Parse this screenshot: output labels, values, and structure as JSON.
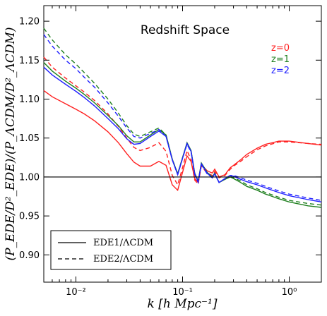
{
  "chart_data": {
    "type": "line",
    "title": "Redshift Space",
    "xlabel": "k [h Mpc⁻¹]",
    "ylabel": "(P_EDE/D²_EDE)/(P_ΛCDM/D²_ΛCDM)",
    "xscale": "log",
    "xlim": [
      0.005,
      2.0
    ],
    "ylim": [
      0.865,
      1.22
    ],
    "x_ticks": [
      {
        "value": 0.01,
        "label": "10⁻²"
      },
      {
        "value": 0.1,
        "label": "10⁻¹"
      },
      {
        "value": 1,
        "label": "10⁰"
      }
    ],
    "y_ticks": [
      {
        "value": 0.9,
        "label": "0.90"
      },
      {
        "value": 0.95,
        "label": "0.95"
      },
      {
        "value": 1.0,
        "label": "1.00"
      },
      {
        "value": 1.05,
        "label": "1.05"
      },
      {
        "value": 1.1,
        "label": "1.10"
      },
      {
        "value": 1.15,
        "label": "1.15"
      },
      {
        "value": 1.2,
        "label": "1.20"
      }
    ],
    "reference_line": 1.0,
    "redshift_labels": [
      {
        "text": "z=0",
        "color": "#ff2020"
      },
      {
        "text": "z=1",
        "color": "#208020"
      },
      {
        "text": "z=2",
        "color": "#2020ff"
      }
    ],
    "legend": [
      {
        "label": "EDE1/ΛCDM",
        "style": "solid"
      },
      {
        "label": "EDE2/ΛCDM",
        "style": "dashed"
      }
    ],
    "series": [
      {
        "color": "#ff2020",
        "style": "solid",
        "x": [
          0.005,
          0.006,
          0.008,
          0.01,
          0.012,
          0.015,
          0.02,
          0.025,
          0.03,
          0.035,
          0.04,
          0.05,
          0.06,
          0.07,
          0.08,
          0.09,
          0.1,
          0.11,
          0.12,
          0.13,
          0.14,
          0.15,
          0.17,
          0.19,
          0.2,
          0.22,
          0.25,
          0.28,
          0.3,
          0.35,
          0.4,
          0.5,
          0.6,
          0.8,
          1.0,
          1.5,
          2.0
        ],
        "y": [
          1.111,
          1.103,
          1.094,
          1.087,
          1.081,
          1.072,
          1.058,
          1.044,
          1.03,
          1.019,
          1.014,
          1.014,
          1.02,
          1.015,
          0.99,
          0.983,
          1.006,
          1.027,
          1.02,
          0.998,
          0.993,
          1.016,
          1.008,
          1.005,
          1.01,
          1.0,
          1.003,
          1.012,
          1.015,
          1.022,
          1.029,
          1.037,
          1.042,
          1.046,
          1.046,
          1.043,
          1.041
        ]
      },
      {
        "color": "#ff2020",
        "style": "dashed",
        "x": [
          0.005,
          0.006,
          0.008,
          0.01,
          0.012,
          0.015,
          0.02,
          0.025,
          0.03,
          0.035,
          0.04,
          0.05,
          0.06,
          0.07,
          0.08,
          0.09,
          0.1,
          0.11,
          0.12,
          0.13,
          0.14,
          0.15,
          0.17,
          0.19,
          0.2,
          0.22,
          0.25,
          0.28,
          0.3,
          0.35,
          0.4,
          0.5,
          0.6,
          0.8,
          1.0,
          1.5,
          2.0
        ],
        "y": [
          1.154,
          1.141,
          1.127,
          1.117,
          1.109,
          1.098,
          1.081,
          1.065,
          1.05,
          1.038,
          1.034,
          1.038,
          1.044,
          1.033,
          1.002,
          0.99,
          1.012,
          1.034,
          1.022,
          0.996,
          0.991,
          1.014,
          1.005,
          1.002,
          1.007,
          0.999,
          1.002,
          1.01,
          1.014,
          1.02,
          1.026,
          1.035,
          1.04,
          1.045,
          1.045,
          1.043,
          1.042
        ]
      },
      {
        "color": "#208020",
        "style": "solid",
        "x": [
          0.005,
          0.006,
          0.008,
          0.01,
          0.012,
          0.015,
          0.02,
          0.025,
          0.03,
          0.035,
          0.04,
          0.05,
          0.06,
          0.07,
          0.08,
          0.09,
          0.1,
          0.11,
          0.12,
          0.13,
          0.14,
          0.15,
          0.17,
          0.19,
          0.2,
          0.22,
          0.25,
          0.28,
          0.3,
          0.35,
          0.4,
          0.5,
          0.6,
          0.8,
          1.0,
          1.5,
          2.0
        ],
        "y": [
          1.147,
          1.136,
          1.123,
          1.114,
          1.106,
          1.095,
          1.079,
          1.066,
          1.053,
          1.045,
          1.045,
          1.054,
          1.061,
          1.054,
          1.023,
          1.004,
          1.025,
          1.044,
          1.034,
          1.005,
          0.995,
          1.018,
          1.006,
          1.0,
          1.005,
          0.993,
          0.997,
          1.0,
          0.998,
          0.993,
          0.988,
          0.983,
          0.978,
          0.972,
          0.968,
          0.963,
          0.961
        ]
      },
      {
        "color": "#208020",
        "style": "dashed",
        "x": [
          0.005,
          0.006,
          0.008,
          0.01,
          0.012,
          0.015,
          0.02,
          0.025,
          0.03,
          0.035,
          0.04,
          0.05,
          0.06,
          0.07,
          0.08,
          0.09,
          0.1,
          0.11,
          0.12,
          0.13,
          0.14,
          0.15,
          0.17,
          0.19,
          0.2,
          0.22,
          0.25,
          0.28,
          0.3,
          0.35,
          0.4,
          0.5,
          0.6,
          0.8,
          1.0,
          1.5,
          2.0
        ],
        "y": [
          1.191,
          1.176,
          1.157,
          1.145,
          1.134,
          1.12,
          1.1,
          1.082,
          1.066,
          1.055,
          1.052,
          1.058,
          1.063,
          1.054,
          1.023,
          1.004,
          1.025,
          1.043,
          1.033,
          1.004,
          0.994,
          1.017,
          1.005,
          0.999,
          1.004,
          0.993,
          0.997,
          1.001,
          0.999,
          0.995,
          0.99,
          0.985,
          0.98,
          0.974,
          0.97,
          0.966,
          0.964
        ]
      },
      {
        "color": "#2020ff",
        "style": "solid",
        "x": [
          0.005,
          0.006,
          0.008,
          0.01,
          0.012,
          0.015,
          0.02,
          0.025,
          0.03,
          0.035,
          0.04,
          0.05,
          0.06,
          0.07,
          0.08,
          0.09,
          0.1,
          0.11,
          0.12,
          0.13,
          0.14,
          0.15,
          0.17,
          0.19,
          0.2,
          0.22,
          0.25,
          0.28,
          0.3,
          0.35,
          0.4,
          0.5,
          0.6,
          0.8,
          1.0,
          1.5,
          2.0
        ],
        "y": [
          1.141,
          1.131,
          1.119,
          1.11,
          1.102,
          1.091,
          1.075,
          1.062,
          1.049,
          1.042,
          1.043,
          1.052,
          1.059,
          1.052,
          1.022,
          1.003,
          1.024,
          1.043,
          1.033,
          1.004,
          0.994,
          1.017,
          1.005,
          0.999,
          1.004,
          0.993,
          0.998,
          1.002,
          1.001,
          0.997,
          0.994,
          0.99,
          0.986,
          0.98,
          0.976,
          0.971,
          0.968
        ]
      },
      {
        "color": "#2020ff",
        "style": "dashed",
        "x": [
          0.005,
          0.006,
          0.008,
          0.01,
          0.012,
          0.015,
          0.02,
          0.025,
          0.03,
          0.035,
          0.04,
          0.05,
          0.06,
          0.07,
          0.08,
          0.09,
          0.1,
          0.11,
          0.12,
          0.13,
          0.14,
          0.15,
          0.17,
          0.19,
          0.2,
          0.22,
          0.25,
          0.28,
          0.3,
          0.35,
          0.4,
          0.5,
          0.6,
          0.8,
          1.0,
          1.5,
          2.0
        ],
        "y": [
          1.183,
          1.168,
          1.15,
          1.139,
          1.128,
          1.115,
          1.095,
          1.078,
          1.063,
          1.052,
          1.05,
          1.056,
          1.061,
          1.052,
          1.022,
          1.003,
          1.024,
          1.042,
          1.032,
          1.003,
          0.993,
          1.016,
          1.004,
          0.999,
          1.004,
          0.993,
          0.998,
          1.002,
          1.002,
          0.999,
          0.996,
          0.992,
          0.988,
          0.982,
          0.978,
          0.973,
          0.97
        ]
      }
    ]
  }
}
